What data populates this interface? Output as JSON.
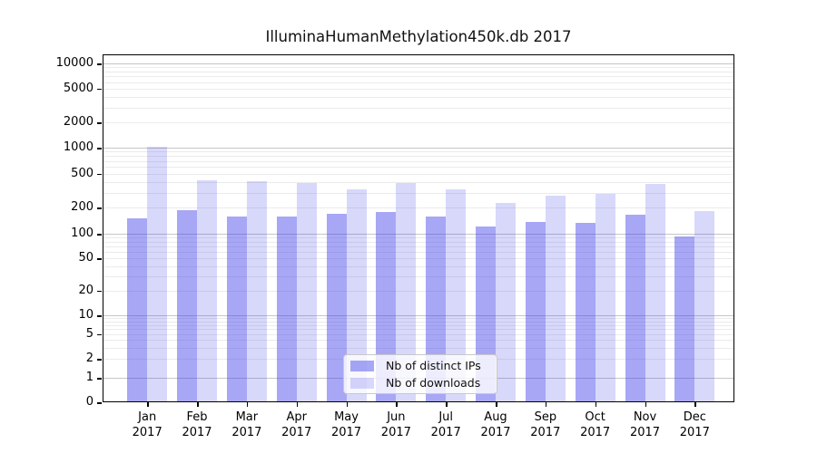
{
  "chart_data": {
    "type": "bar",
    "title": "IlluminaHumanMethylation450k.db 2017",
    "categories": [
      "Jan",
      "Feb",
      "Mar",
      "Apr",
      "May",
      "Jun",
      "Jul",
      "Aug",
      "Sep",
      "Oct",
      "Nov",
      "Dec"
    ],
    "category_year": "2017",
    "series": [
      {
        "name": "Nb of distinct IPs",
        "color": "rgba(60,60,235,0.45)",
        "values": [
          152,
          190,
          158,
          158,
          170,
          180,
          157,
          120,
          138,
          134,
          167,
          92
        ]
      },
      {
        "name": "Nb of downloads",
        "color": "rgba(60,60,235,0.20)",
        "values": [
          1020,
          420,
          405,
          385,
          325,
          390,
          330,
          230,
          275,
          290,
          380,
          185
        ]
      }
    ],
    "yticks": [
      0,
      1,
      2,
      5,
      10,
      20,
      50,
      100,
      200,
      500,
      1000,
      2000,
      5000,
      10000
    ],
    "yscale": "log-with-zero",
    "ylim": [
      0,
      10000
    ],
    "grid": true,
    "legend_position": "lower-center-inside"
  },
  "colors": {
    "bar_ips_rendered": "#a7a7f6",
    "bar_downloads_rendered": "#d9d9fb",
    "grid_major": "#c6c6c6",
    "grid_minor": "#ebebeb",
    "spine": "#000000"
  }
}
